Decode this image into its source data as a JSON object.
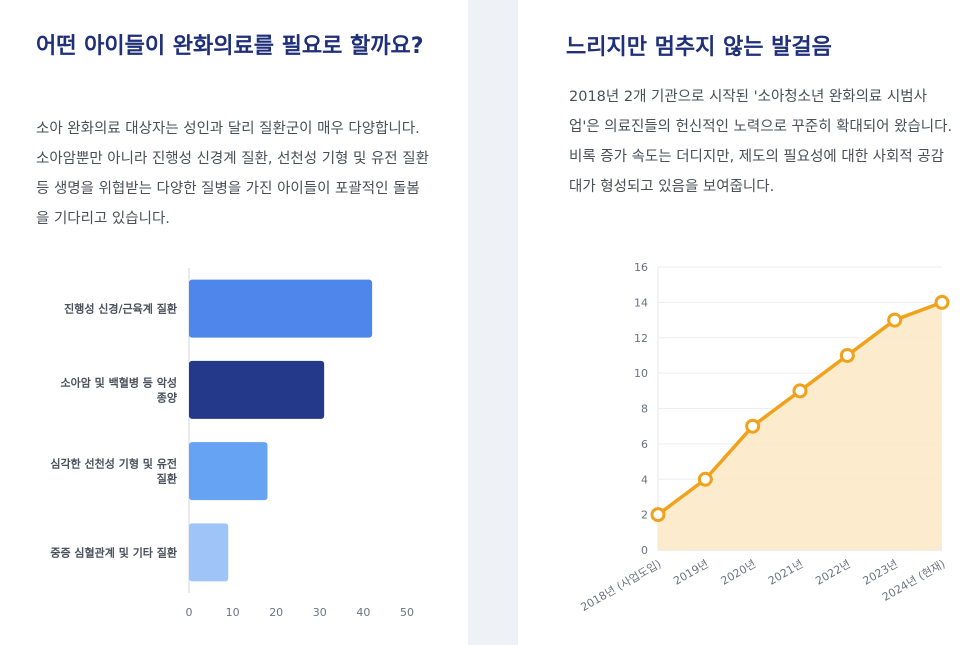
{
  "left_section": {
    "title": "어떤 아이들이 완화의료를 필요로 할까요?",
    "description": "소아 완화의료 대상자는 성인과 달리 질환군이 매우 다양합니다. 소아암뿐만 아니라 진행성 신경계 질환, 선천성 기형 및 유전 질환 등 생명을 위협받는 다양한 질병을 가진 아이들이 포괄적인 돌봄을 기다리고 있습니다."
  },
  "right_section": {
    "title": "느리지만 멈추지 않는 발걸음",
    "description": "2018년 2개 기관으로 시작된 '소아청소년 완화의료 시범사업'은 의료진들의 헌신적인 노력으로 꾸준히 확대되어 왔습니다. 비록 증가 속도는 더디지만, 제도의 필요성에 대한 사회적 공감대가 형성되고 있음을 보여줍니다."
  },
  "chart_data": [
    {
      "type": "bar",
      "orientation": "horizontal",
      "categories": [
        [
          "진행성 신경/근육계 질환"
        ],
        [
          "소아암 및 백혈병 등 악성",
          "종양"
        ],
        [
          "심각한 선천성 기형 및 유전",
          "질환"
        ],
        [
          "중증 심혈관계 및 기타 질환"
        ]
      ],
      "values": [
        42,
        31,
        18,
        9
      ],
      "colors": [
        "#4f86ec",
        "#25398a",
        "#67a3f3",
        "#9fc5f8"
      ],
      "xlim": [
        0,
        50
      ],
      "xticks": [
        0,
        10,
        20,
        30,
        40,
        50
      ],
      "grid": false,
      "legend": "none"
    },
    {
      "type": "area",
      "categories": [
        "2018년 (사업도입)",
        "2019년",
        "2020년",
        "2021년",
        "2022년",
        "2023년",
        "2024년 (현재)"
      ],
      "values": [
        2,
        4,
        7,
        9,
        11,
        13,
        14
      ],
      "ylim": [
        0,
        16
      ],
      "yticks": [
        0,
        2,
        4,
        6,
        8,
        10,
        12,
        14,
        16
      ],
      "line_color": "#f0a21c",
      "fill_color": "#fde9c8",
      "grid": true,
      "legend": "none"
    }
  ]
}
